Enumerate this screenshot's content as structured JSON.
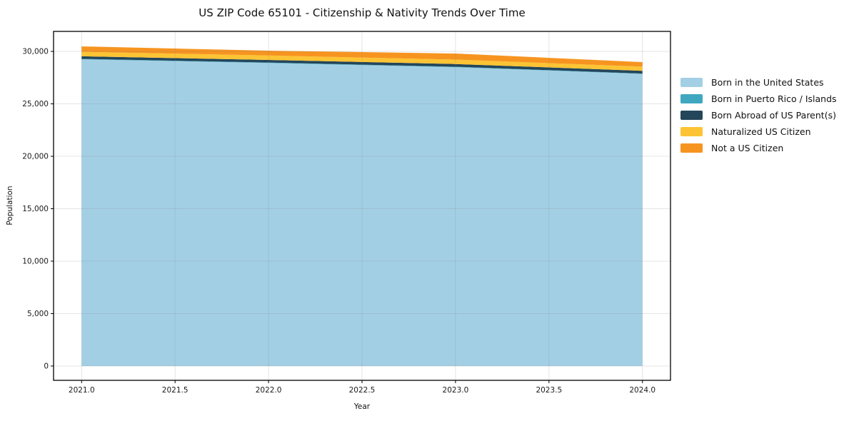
{
  "chart_data": {
    "type": "area",
    "stacked": true,
    "title": "US ZIP Code 65101 - Citizenship & Nativity Trends Over Time",
    "xlabel": "Year",
    "ylabel": "Population",
    "x": [
      2021,
      2022,
      2023,
      2024
    ],
    "series": [
      {
        "name": "Born in the United States",
        "color": "#a3cfe5",
        "values": [
          29250,
          28900,
          28500,
          27850
        ]
      },
      {
        "name": "Born in Puerto Rico / Islands",
        "color": "#3fa8c0",
        "values": [
          40,
          40,
          40,
          40
        ]
      },
      {
        "name": "Born Abroad of US Parent(s)",
        "color": "#24465a",
        "values": [
          250,
          250,
          260,
          260
        ]
      },
      {
        "name": "Naturalized US Citizen",
        "color": "#fcc434",
        "values": [
          420,
          420,
          420,
          400
        ]
      },
      {
        "name": "Not a US Citizen",
        "color": "#f79420",
        "values": [
          520,
          460,
          580,
          430
        ]
      }
    ],
    "totals": [
      30480,
      30070,
      29800,
      28980
    ],
    "xlim": [
      2020.85,
      2024.15
    ],
    "ylim": [
      -1365,
      31910
    ],
    "xticks": [
      2021.0,
      2021.5,
      2022.0,
      2022.5,
      2023.0,
      2023.5,
      2024.0
    ],
    "xtick_labels": [
      "2021.0",
      "2021.5",
      "2022.0",
      "2022.5",
      "2023.0",
      "2023.5",
      "2024.0"
    ],
    "yticks": [
      0,
      5000,
      10000,
      15000,
      20000,
      25000,
      30000
    ],
    "ytick_labels": [
      "0",
      "5,000",
      "10,000",
      "15,000",
      "20,000",
      "25,000",
      "30,000"
    ],
    "grid": true,
    "legend_position": "right-outside",
    "colors": {
      "axis": "#000000",
      "tick_label": "#1a1a1a",
      "gridline": "rgba(130,130,130,0.22)",
      "background": "#ffffff"
    }
  }
}
